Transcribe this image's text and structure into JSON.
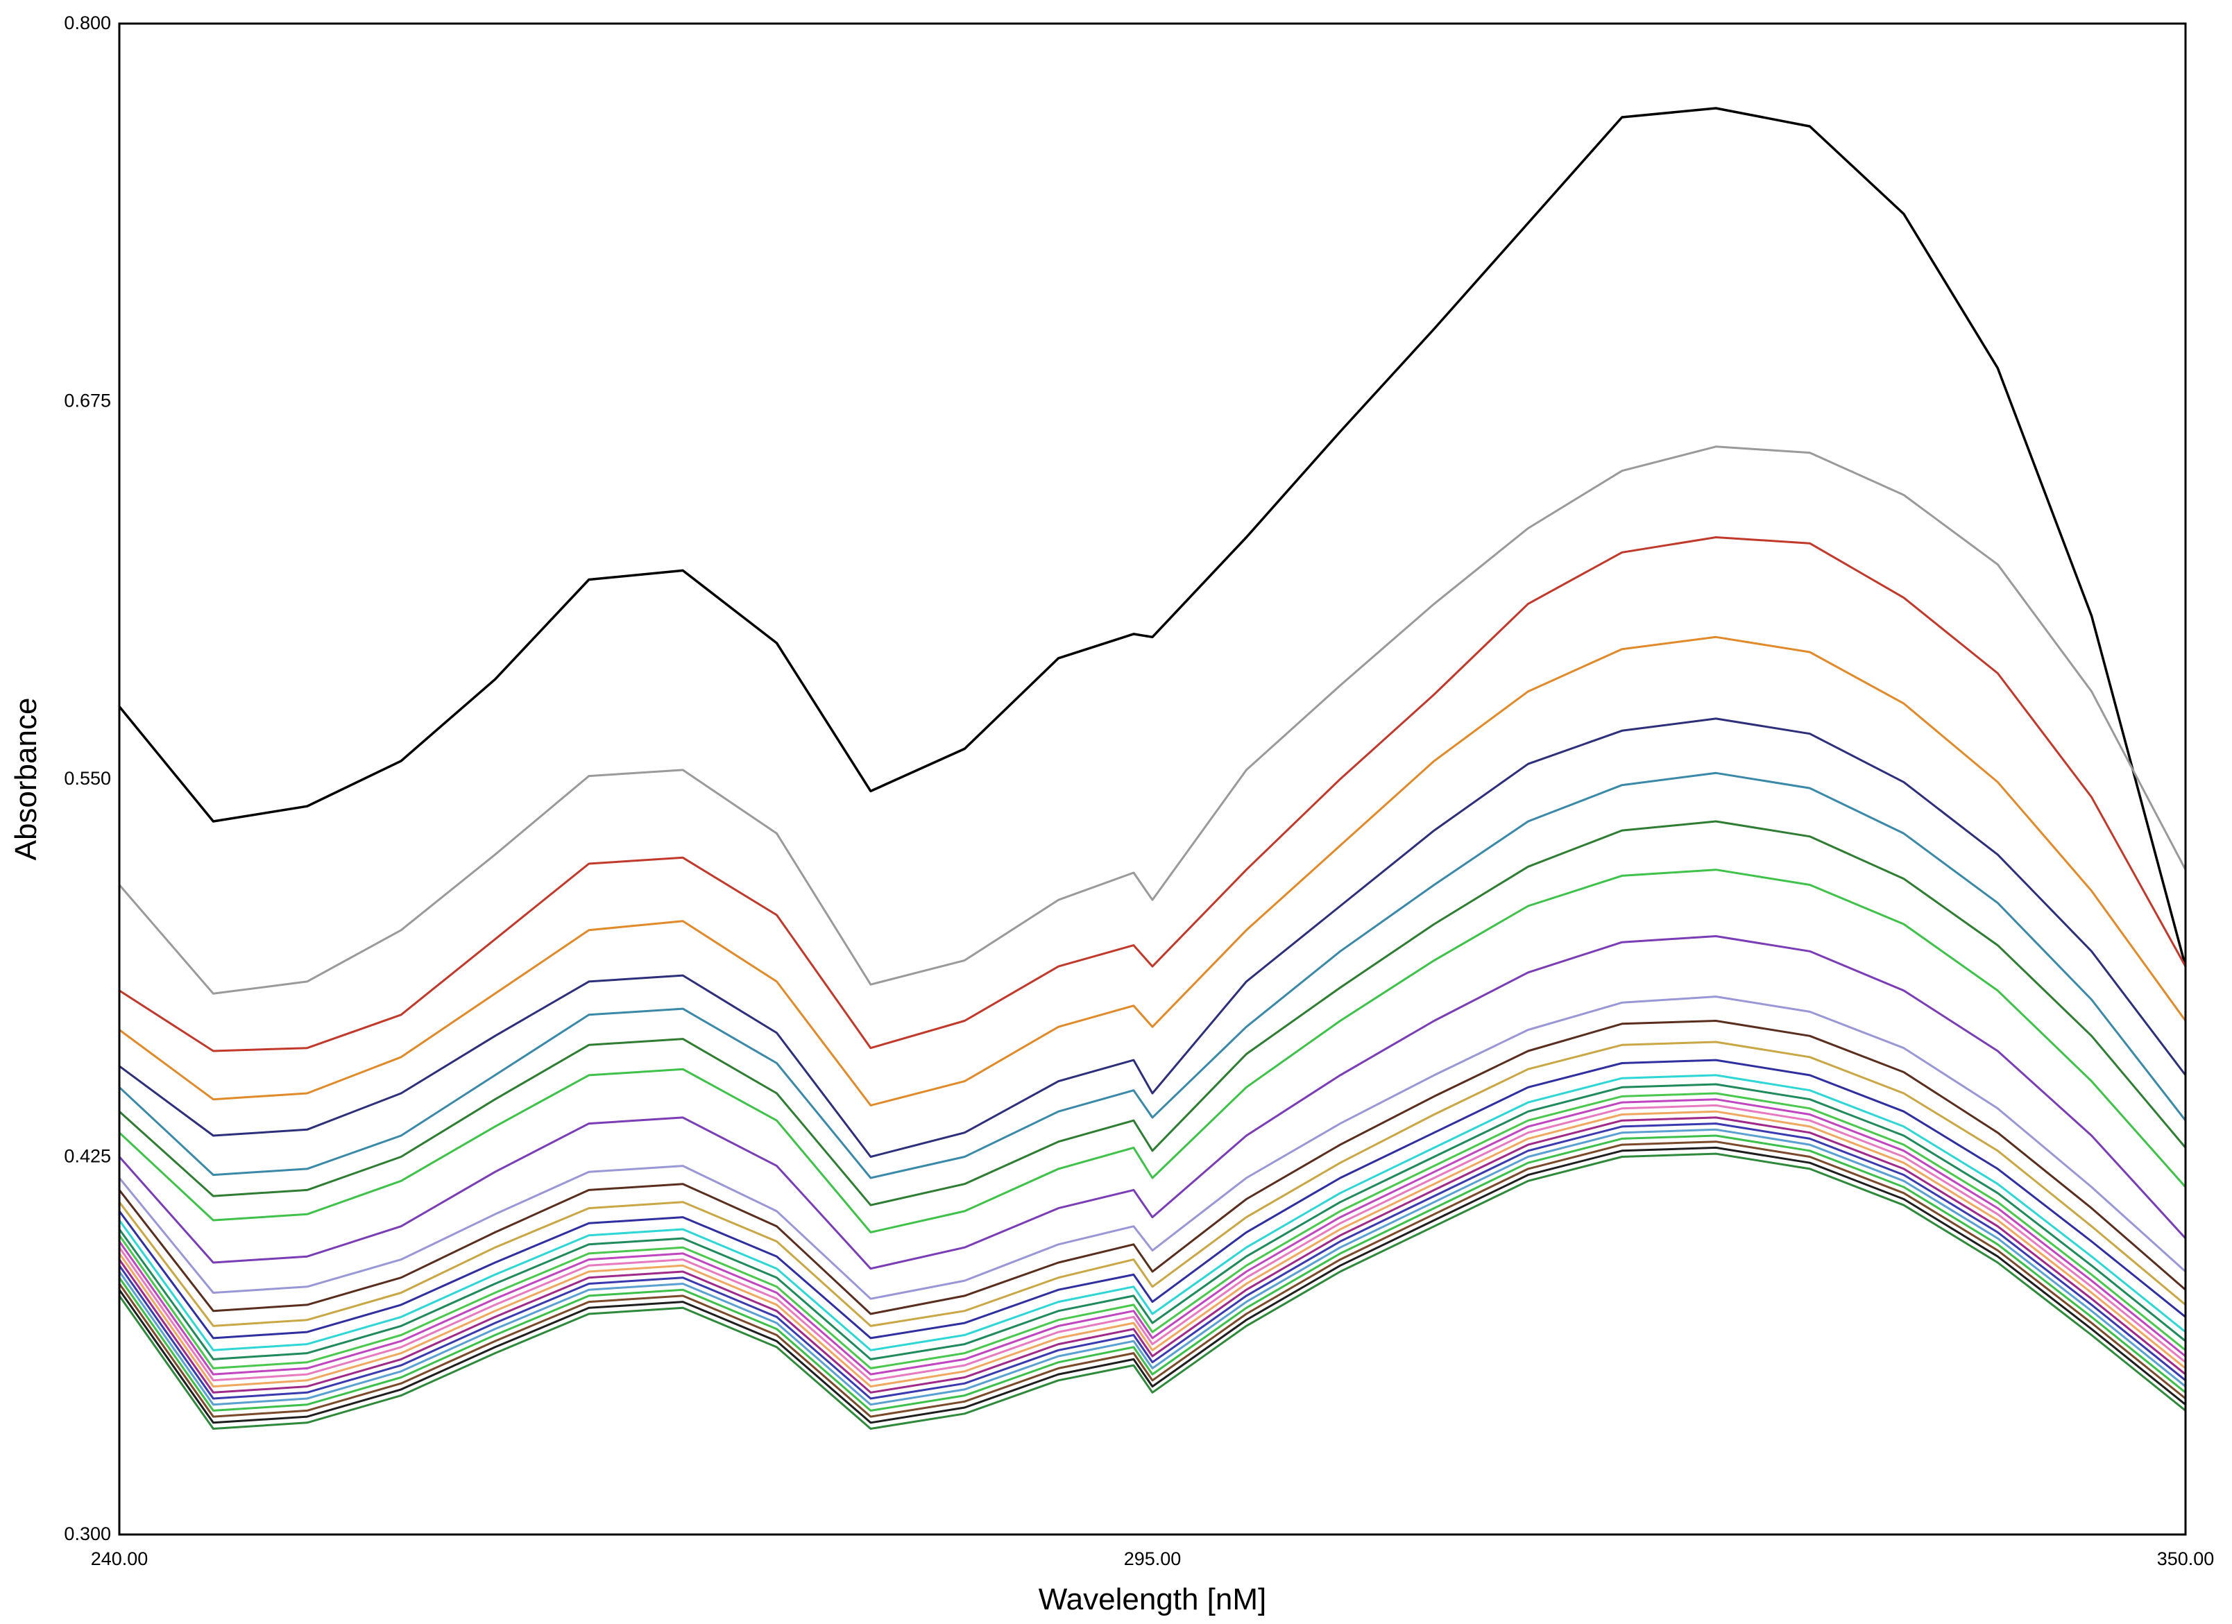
{
  "chart_data": {
    "type": "line",
    "title": "",
    "xlabel": "Wavelength [nM]",
    "ylabel": "Absorbance",
    "xlim": [
      240,
      350
    ],
    "ylim": [
      0.3,
      0.8
    ],
    "x_ticks": [
      "240.00",
      "295.00",
      "350.00"
    ],
    "y_ticks": [
      "0.300",
      "0.425",
      "0.550",
      "0.675",
      "0.800"
    ],
    "grid": false,
    "legend": "none",
    "x": [
      240,
      245,
      250,
      255,
      260,
      265,
      270,
      275,
      280,
      285,
      290,
      294,
      295,
      300,
      305,
      310,
      315,
      320,
      325,
      330,
      335,
      340,
      345,
      350
    ],
    "series": [
      {
        "color": "#000000",
        "values": [
          0.574,
          0.536,
          0.541,
          0.556,
          0.583,
          0.616,
          0.619,
          0.595,
          0.546,
          0.56,
          0.59,
          0.598,
          0.597,
          0.63,
          0.665,
          0.699,
          0.734,
          0.769,
          0.772,
          0.766,
          0.737,
          0.686,
          0.604,
          0.488
        ]
      },
      {
        "color": "#9a9a9a",
        "values": [
          0.515,
          0.479,
          0.483,
          0.5,
          0.525,
          0.551,
          0.553,
          0.532,
          0.482,
          0.49,
          0.51,
          0.519,
          0.51,
          0.553,
          0.581,
          0.608,
          0.633,
          0.652,
          0.66,
          0.658,
          0.644,
          0.621,
          0.579,
          0.52
        ]
      },
      {
        "color": "#c0392b",
        "values": [
          0.48,
          0.46,
          0.461,
          0.472,
          0.497,
          0.522,
          0.524,
          0.505,
          0.461,
          0.47,
          0.488,
          0.495,
          0.488,
          0.52,
          0.55,
          0.578,
          0.608,
          0.625,
          0.63,
          0.628,
          0.61,
          0.585,
          0.544,
          0.488
        ]
      },
      {
        "color": "#e08a2a",
        "values": [
          0.467,
          0.444,
          0.446,
          0.458,
          0.479,
          0.5,
          0.503,
          0.483,
          0.442,
          0.45,
          0.468,
          0.475,
          0.468,
          0.5,
          0.528,
          0.556,
          0.579,
          0.593,
          0.597,
          0.592,
          0.575,
          0.549,
          0.513,
          0.47
        ]
      },
      {
        "color": "#2e2f7a",
        "values": [
          0.455,
          0.432,
          0.434,
          0.446,
          0.465,
          0.483,
          0.485,
          0.466,
          0.425,
          0.433,
          0.45,
          0.457,
          0.446,
          0.483,
          0.508,
          0.533,
          0.555,
          0.566,
          0.57,
          0.565,
          0.549,
          0.525,
          0.493,
          0.452
        ]
      },
      {
        "color": "#3a89a8",
        "values": [
          0.448,
          0.419,
          0.421,
          0.432,
          0.452,
          0.472,
          0.474,
          0.456,
          0.418,
          0.425,
          0.44,
          0.447,
          0.438,
          0.468,
          0.493,
          0.515,
          0.536,
          0.548,
          0.552,
          0.547,
          0.532,
          0.509,
          0.477,
          0.437
        ]
      },
      {
        "color": "#2e7d32",
        "values": [
          0.44,
          0.412,
          0.414,
          0.425,
          0.444,
          0.462,
          0.464,
          0.446,
          0.409,
          0.416,
          0.43,
          0.437,
          0.427,
          0.459,
          0.481,
          0.502,
          0.521,
          0.533,
          0.536,
          0.531,
          0.517,
          0.495,
          0.465,
          0.428
        ]
      },
      {
        "color": "#3ec24a",
        "values": [
          0.433,
          0.404,
          0.406,
          0.417,
          0.435,
          0.452,
          0.454,
          0.437,
          0.4,
          0.407,
          0.421,
          0.428,
          0.418,
          0.448,
          0.47,
          0.49,
          0.508,
          0.518,
          0.52,
          0.515,
          0.502,
          0.48,
          0.45,
          0.415
        ]
      },
      {
        "color": "#7a3db5",
        "values": [
          0.425,
          0.39,
          0.392,
          0.402,
          0.42,
          0.436,
          0.438,
          0.422,
          0.388,
          0.395,
          0.408,
          0.414,
          0.405,
          0.432,
          0.452,
          0.47,
          0.486,
          0.496,
          0.498,
          0.493,
          0.48,
          0.46,
          0.432,
          0.398
        ]
      },
      {
        "color": "#9a97d6",
        "values": [
          0.418,
          0.38,
          0.382,
          0.391,
          0.406,
          0.42,
          0.422,
          0.407,
          0.378,
          0.384,
          0.396,
          0.402,
          0.394,
          0.418,
          0.436,
          0.452,
          0.467,
          0.476,
          0.478,
          0.473,
          0.461,
          0.441,
          0.415,
          0.387
        ]
      },
      {
        "color": "#5a2e1e",
        "values": [
          0.414,
          0.374,
          0.376,
          0.385,
          0.4,
          0.414,
          0.416,
          0.402,
          0.373,
          0.379,
          0.39,
          0.396,
          0.387,
          0.411,
          0.429,
          0.445,
          0.46,
          0.469,
          0.47,
          0.465,
          0.453,
          0.433,
          0.408,
          0.381
        ]
      },
      {
        "color": "#c9a745",
        "values": [
          0.41,
          0.369,
          0.371,
          0.38,
          0.395,
          0.408,
          0.41,
          0.397,
          0.369,
          0.374,
          0.385,
          0.391,
          0.382,
          0.405,
          0.423,
          0.439,
          0.454,
          0.462,
          0.463,
          0.458,
          0.446,
          0.427,
          0.402,
          0.376
        ]
      },
      {
        "color": "#2f2fa0",
        "values": [
          0.407,
          0.365,
          0.367,
          0.376,
          0.39,
          0.403,
          0.405,
          0.392,
          0.365,
          0.37,
          0.381,
          0.386,
          0.377,
          0.4,
          0.418,
          0.433,
          0.448,
          0.456,
          0.457,
          0.452,
          0.44,
          0.421,
          0.397,
          0.372
        ]
      },
      {
        "color": "#2fd6d6",
        "values": [
          0.404,
          0.361,
          0.363,
          0.372,
          0.386,
          0.399,
          0.401,
          0.388,
          0.361,
          0.366,
          0.377,
          0.382,
          0.373,
          0.395,
          0.413,
          0.428,
          0.443,
          0.451,
          0.452,
          0.447,
          0.435,
          0.416,
          0.392,
          0.367
        ]
      },
      {
        "color": "#1f8a5c",
        "values": [
          0.401,
          0.358,
          0.36,
          0.369,
          0.383,
          0.396,
          0.398,
          0.385,
          0.358,
          0.363,
          0.374,
          0.379,
          0.37,
          0.392,
          0.41,
          0.425,
          0.44,
          0.448,
          0.449,
          0.444,
          0.432,
          0.413,
          0.389,
          0.364
        ]
      },
      {
        "color": "#4ac84e",
        "values": [
          0.399,
          0.355,
          0.357,
          0.366,
          0.38,
          0.393,
          0.395,
          0.382,
          0.355,
          0.36,
          0.371,
          0.376,
          0.367,
          0.389,
          0.407,
          0.422,
          0.437,
          0.445,
          0.446,
          0.441,
          0.429,
          0.41,
          0.386,
          0.361
        ]
      },
      {
        "color": "#c046c0",
        "values": [
          0.397,
          0.353,
          0.355,
          0.364,
          0.378,
          0.391,
          0.393,
          0.38,
          0.353,
          0.358,
          0.369,
          0.374,
          0.365,
          0.387,
          0.405,
          0.42,
          0.435,
          0.443,
          0.444,
          0.439,
          0.427,
          0.408,
          0.384,
          0.359
        ]
      },
      {
        "color": "#e87ac0",
        "values": [
          0.395,
          0.351,
          0.353,
          0.362,
          0.376,
          0.389,
          0.391,
          0.378,
          0.351,
          0.356,
          0.367,
          0.372,
          0.363,
          0.385,
          0.403,
          0.418,
          0.433,
          0.441,
          0.442,
          0.437,
          0.425,
          0.406,
          0.382,
          0.357
        ]
      },
      {
        "color": "#f0a860",
        "values": [
          0.393,
          0.349,
          0.351,
          0.36,
          0.374,
          0.387,
          0.389,
          0.376,
          0.349,
          0.354,
          0.365,
          0.37,
          0.361,
          0.383,
          0.401,
          0.416,
          0.431,
          0.439,
          0.44,
          0.435,
          0.423,
          0.404,
          0.38,
          0.355
        ]
      },
      {
        "color": "#a02a8a",
        "values": [
          0.391,
          0.347,
          0.349,
          0.358,
          0.372,
          0.385,
          0.387,
          0.374,
          0.347,
          0.352,
          0.363,
          0.368,
          0.359,
          0.381,
          0.399,
          0.414,
          0.429,
          0.437,
          0.438,
          0.433,
          0.421,
          0.402,
          0.378,
          0.353
        ]
      },
      {
        "color": "#3a3ab0",
        "values": [
          0.389,
          0.345,
          0.347,
          0.356,
          0.37,
          0.383,
          0.385,
          0.372,
          0.345,
          0.35,
          0.361,
          0.366,
          0.357,
          0.379,
          0.397,
          0.412,
          0.427,
          0.435,
          0.436,
          0.431,
          0.419,
          0.4,
          0.376,
          0.351
        ]
      },
      {
        "color": "#5aa0d0",
        "values": [
          0.387,
          0.343,
          0.345,
          0.354,
          0.368,
          0.381,
          0.383,
          0.37,
          0.343,
          0.348,
          0.359,
          0.364,
          0.355,
          0.377,
          0.395,
          0.41,
          0.425,
          0.433,
          0.434,
          0.429,
          0.417,
          0.398,
          0.374,
          0.349
        ]
      },
      {
        "color": "#3cc04a",
        "values": [
          0.385,
          0.341,
          0.343,
          0.352,
          0.366,
          0.379,
          0.381,
          0.368,
          0.341,
          0.346,
          0.357,
          0.362,
          0.353,
          0.375,
          0.393,
          0.408,
          0.423,
          0.431,
          0.432,
          0.427,
          0.415,
          0.396,
          0.372,
          0.347
        ]
      },
      {
        "color": "#7a4a2a",
        "values": [
          0.383,
          0.339,
          0.341,
          0.35,
          0.364,
          0.377,
          0.379,
          0.366,
          0.339,
          0.344,
          0.355,
          0.36,
          0.351,
          0.373,
          0.391,
          0.406,
          0.421,
          0.429,
          0.43,
          0.425,
          0.413,
          0.394,
          0.37,
          0.345
        ]
      },
      {
        "color": "#1f1f1f",
        "values": [
          0.381,
          0.337,
          0.339,
          0.348,
          0.362,
          0.375,
          0.377,
          0.364,
          0.337,
          0.342,
          0.353,
          0.358,
          0.349,
          0.371,
          0.389,
          0.404,
          0.419,
          0.427,
          0.428,
          0.423,
          0.411,
          0.392,
          0.368,
          0.343
        ]
      },
      {
        "color": "#2e8a3a",
        "values": [
          0.379,
          0.335,
          0.337,
          0.346,
          0.36,
          0.373,
          0.375,
          0.362,
          0.335,
          0.34,
          0.351,
          0.356,
          0.347,
          0.369,
          0.387,
          0.402,
          0.417,
          0.425,
          0.426,
          0.421,
          0.409,
          0.39,
          0.366,
          0.341
        ]
      }
    ]
  }
}
